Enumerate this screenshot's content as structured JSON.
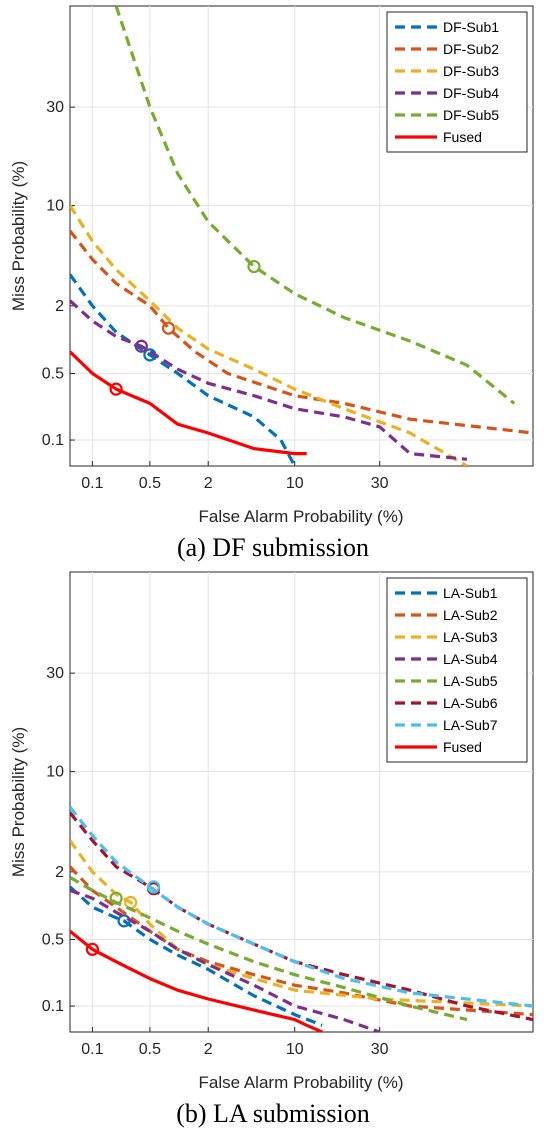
{
  "chart_data": [
    {
      "type": "line",
      "title": "",
      "caption": "(a) DF submission",
      "xlabel": "False Alarm Probability (%)",
      "ylabel": "Miss Probability (%)",
      "x_scale": "probit",
      "y_scale": "probit",
      "xlim": [
        0.05,
        80
      ],
      "ylim": [
        0.05,
        60
      ],
      "xticks": [
        "0.1",
        "0.5",
        "2",
        "10",
        "30"
      ],
      "yticks": [
        "0.1",
        "0.5",
        "2",
        "10",
        "30"
      ],
      "grid": true,
      "legend_position": "top-right",
      "series": [
        {
          "name": "DF-Sub1",
          "color": "#0072BD",
          "dash": true,
          "x": [
            0.05,
            0.1,
            0.2,
            0.5,
            1,
            2,
            5,
            8,
            9,
            10
          ],
          "y": [
            3.5,
            2.0,
            1.2,
            0.75,
            0.5,
            0.3,
            0.18,
            0.1,
            0.07,
            0.05
          ],
          "marker": {
            "x": 0.5,
            "y": 0.75
          }
        },
        {
          "name": "DF-Sub2",
          "color": "#D95319",
          "dash": true,
          "x": [
            0.05,
            0.1,
            0.2,
            0.5,
            0.8,
            1.5,
            3,
            10,
            20,
            40,
            80
          ],
          "y": [
            7,
            4.5,
            3,
            2,
            1.3,
            0.8,
            0.5,
            0.3,
            0.25,
            0.17,
            0.12
          ],
          "marker": {
            "x": 0.8,
            "y": 1.3
          }
        },
        {
          "name": "DF-Sub3",
          "color": "#EDB120",
          "dash": true,
          "x": [
            0.05,
            0.1,
            0.2,
            0.5,
            1,
            2,
            5,
            10,
            20,
            40,
            60
          ],
          "y": [
            10,
            6,
            3.8,
            2.2,
            1.3,
            0.85,
            0.55,
            0.35,
            0.22,
            0.12,
            0.05
          ]
        },
        {
          "name": "DF-Sub4",
          "color": "#7E2F8E",
          "dash": true,
          "x": [
            0.05,
            0.1,
            0.2,
            0.4,
            1,
            2,
            5,
            10,
            20,
            30,
            40,
            60
          ],
          "y": [
            2.2,
            1.5,
            1.1,
            0.9,
            0.55,
            0.4,
            0.3,
            0.22,
            0.18,
            0.14,
            0.07,
            0.06
          ],
          "marker": {
            "x": 0.4,
            "y": 0.9
          }
        },
        {
          "name": "DF-Sub5",
          "color": "#77AC30",
          "dash": true,
          "x": [
            0.2,
            0.5,
            1,
            2,
            5,
            10,
            20,
            40,
            60,
            75
          ],
          "y": [
            60,
            30,
            15,
            8,
            4,
            2.5,
            1.6,
            1.0,
            0.6,
            0.25
          ],
          "marker": {
            "x": 5,
            "y": 4
          }
        },
        {
          "name": "Fused",
          "color": "#FF0000",
          "dash": false,
          "x": [
            0.05,
            0.1,
            0.2,
            0.5,
            1,
            2,
            5,
            10,
            12
          ],
          "y": [
            0.8,
            0.5,
            0.35,
            0.25,
            0.15,
            0.12,
            0.08,
            0.07,
            0.07
          ],
          "marker": {
            "x": 0.2,
            "y": 0.35
          }
        }
      ]
    },
    {
      "type": "line",
      "title": "",
      "caption": "(b) LA submission",
      "xlabel": "False Alarm Probability (%)",
      "ylabel": "Miss Probability (%)",
      "x_scale": "probit",
      "y_scale": "probit",
      "xlim": [
        0.05,
        80
      ],
      "ylim": [
        0.05,
        60
      ],
      "xticks": [
        "0.1",
        "0.5",
        "2",
        "10",
        "30"
      ],
      "yticks": [
        "0.1",
        "0.5",
        "2",
        "10",
        "30"
      ],
      "grid": true,
      "legend_position": "top-right",
      "series": [
        {
          "name": "LA-Sub1",
          "color": "#0072BD",
          "dash": true,
          "x": [
            0.05,
            0.1,
            0.2,
            0.25,
            0.5,
            1,
            2,
            5,
            10,
            15
          ],
          "y": [
            1.5,
            1.0,
            0.8,
            0.75,
            0.5,
            0.35,
            0.25,
            0.13,
            0.08,
            0.06
          ],
          "marker": {
            "x": 0.25,
            "y": 0.75
          }
        },
        {
          "name": "LA-Sub2",
          "color": "#D95319",
          "dash": true,
          "x": [
            0.05,
            0.1,
            0.2,
            0.5,
            1,
            2,
            5,
            10,
            20,
            40,
            80
          ],
          "y": [
            2.2,
            1.4,
            1.0,
            0.6,
            0.4,
            0.3,
            0.22,
            0.17,
            0.14,
            0.1,
            0.08
          ]
        },
        {
          "name": "LA-Sub3",
          "color": "#EDB120",
          "dash": true,
          "x": [
            0.05,
            0.1,
            0.2,
            0.3,
            0.5,
            1,
            2,
            5,
            10,
            30,
            80
          ],
          "y": [
            3.5,
            2.0,
            1.3,
            1.1,
            0.7,
            0.4,
            0.28,
            0.2,
            0.15,
            0.12,
            0.1
          ],
          "marker": {
            "x": 0.3,
            "y": 1.1
          }
        },
        {
          "name": "LA-Sub4",
          "color": "#7E2F8E",
          "dash": true,
          "x": [
            0.05,
            0.1,
            0.2,
            0.5,
            1,
            2,
            5,
            10,
            20,
            30
          ],
          "y": [
            1.4,
            1.2,
            0.9,
            0.6,
            0.4,
            0.28,
            0.17,
            0.1,
            0.07,
            0.05
          ]
        },
        {
          "name": "LA-Sub5",
          "color": "#77AC30",
          "dash": true,
          "x": [
            0.05,
            0.1,
            0.2,
            0.5,
            1,
            2,
            5,
            10,
            20,
            40,
            60
          ],
          "y": [
            1.8,
            1.4,
            1.1,
            0.8,
            0.6,
            0.45,
            0.3,
            0.22,
            0.16,
            0.1,
            0.07
          ],
          "marker": {
            "x": 0.2,
            "y": 1.2
          }
        },
        {
          "name": "LA-Sub6",
          "color": "#A2142F",
          "dash": true,
          "x": [
            0.05,
            0.1,
            0.2,
            0.5,
            1,
            2,
            5,
            10,
            20,
            40,
            60,
            80
          ],
          "y": [
            5.5,
            3.5,
            2.2,
            1.5,
            1.0,
            0.7,
            0.45,
            0.3,
            0.22,
            0.15,
            0.1,
            0.07
          ],
          "marker": {
            "x": 0.55,
            "y": 1.45
          }
        },
        {
          "name": "LA-Sub7",
          "color": "#4DBEEE",
          "dash": true,
          "x": [
            0.05,
            0.1,
            0.2,
            0.5,
            1,
            2,
            5,
            10,
            20,
            40,
            80
          ],
          "y": [
            6.0,
            3.8,
            2.4,
            1.5,
            1.0,
            0.7,
            0.45,
            0.3,
            0.2,
            0.14,
            0.1
          ],
          "marker": {
            "x": 0.55,
            "y": 1.5
          }
        },
        {
          "name": "Fused",
          "color": "#FF0000",
          "dash": false,
          "x": [
            0.05,
            0.1,
            0.2,
            0.5,
            1,
            2,
            5,
            10,
            12,
            15
          ],
          "y": [
            0.6,
            0.4,
            0.3,
            0.2,
            0.15,
            0.12,
            0.09,
            0.07,
            0.06,
            0.05
          ],
          "marker": {
            "x": 0.1,
            "y": 0.4
          }
        }
      ]
    }
  ]
}
